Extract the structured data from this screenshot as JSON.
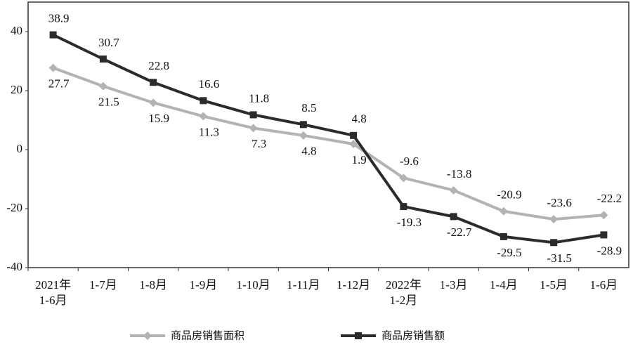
{
  "chart_data": {
    "type": "line",
    "categories": [
      "2021年\n1-6月",
      "1-7月",
      "1-8月",
      "1-9月",
      "1-10月",
      "1-11月",
      "1-12月",
      "2022年\n1-2月",
      "1-3月",
      "1-4月",
      "1-5月",
      "1-6月"
    ],
    "series": [
      {
        "name": "商品房销售面积",
        "color": "#b3b3b3",
        "marker": "diamond",
        "values": [
          27.7,
          21.5,
          15.9,
          11.3,
          7.3,
          4.8,
          1.9,
          -9.6,
          -13.8,
          -20.9,
          -23.6,
          -22.2
        ]
      },
      {
        "name": "商品房销售额",
        "color": "#2b2b2b",
        "marker": "square",
        "values": [
          38.9,
          30.7,
          22.8,
          16.6,
          11.8,
          8.5,
          4.8,
          -19.3,
          -22.7,
          -29.5,
          -31.5,
          -28.9
        ]
      }
    ],
    "ylim": [
      -40,
      50
    ],
    "yticks": [
      -40,
      -20,
      0,
      20,
      40
    ]
  }
}
